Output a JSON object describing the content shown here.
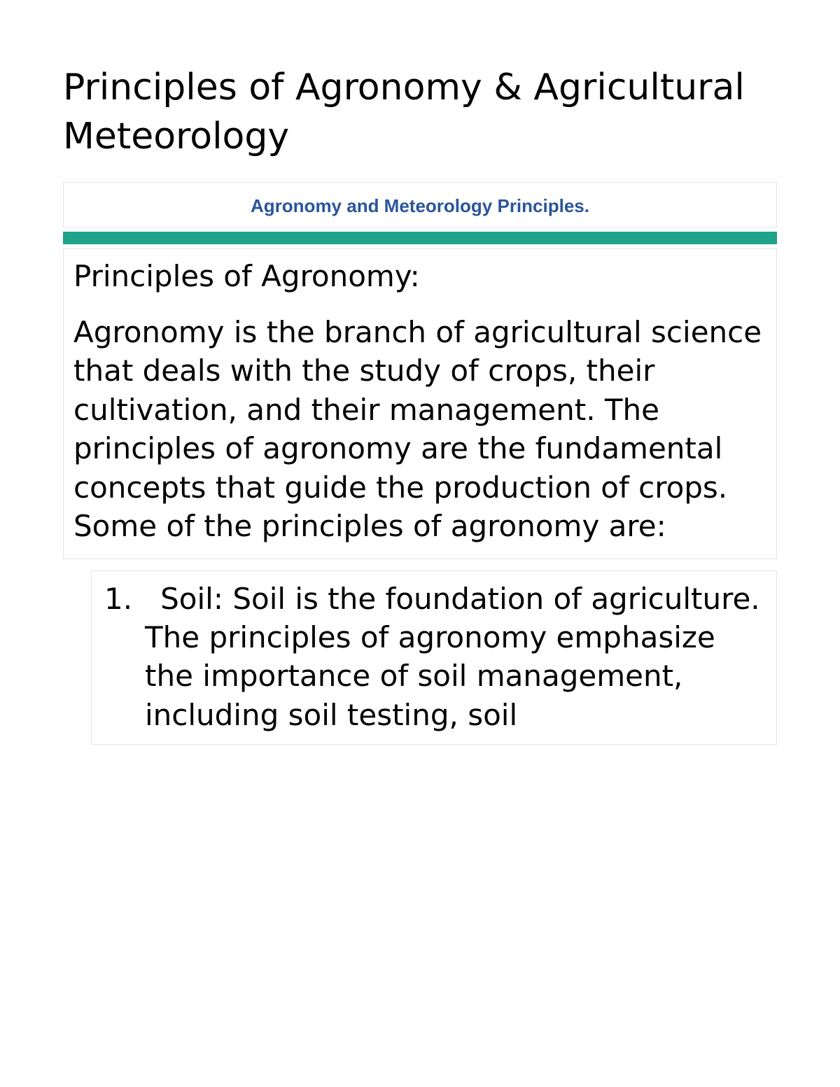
{
  "title": "Principles of Agronomy & Agricultural Meteorology",
  "subtitle": "Agronomy and Meteorology Principles.",
  "colors": {
    "subtitle_text": "#2a5599",
    "green_bar": "#1fa38a",
    "border": "#e5e5e5",
    "text": "#000000",
    "background": "#ffffff"
  },
  "typography": {
    "title_fontsize": 52,
    "subtitle_fontsize": 26,
    "body_fontsize": 42,
    "font_family": "DejaVu Sans"
  },
  "section": {
    "heading": "Principles of Agronomy:",
    "paragraph": "Agronomy is the branch of agricultural science that deals with the study of crops, their cultivation, and their management. The principles of agronomy are the fundamental concepts that guide the production of crops. Some of the principles of agronomy are:"
  },
  "list": {
    "items": [
      {
        "number": "1.",
        "text": "Soil: Soil is the foundation of agriculture. The principles of agronomy emphasize the importance of soil management, including soil testing, soil"
      }
    ]
  }
}
